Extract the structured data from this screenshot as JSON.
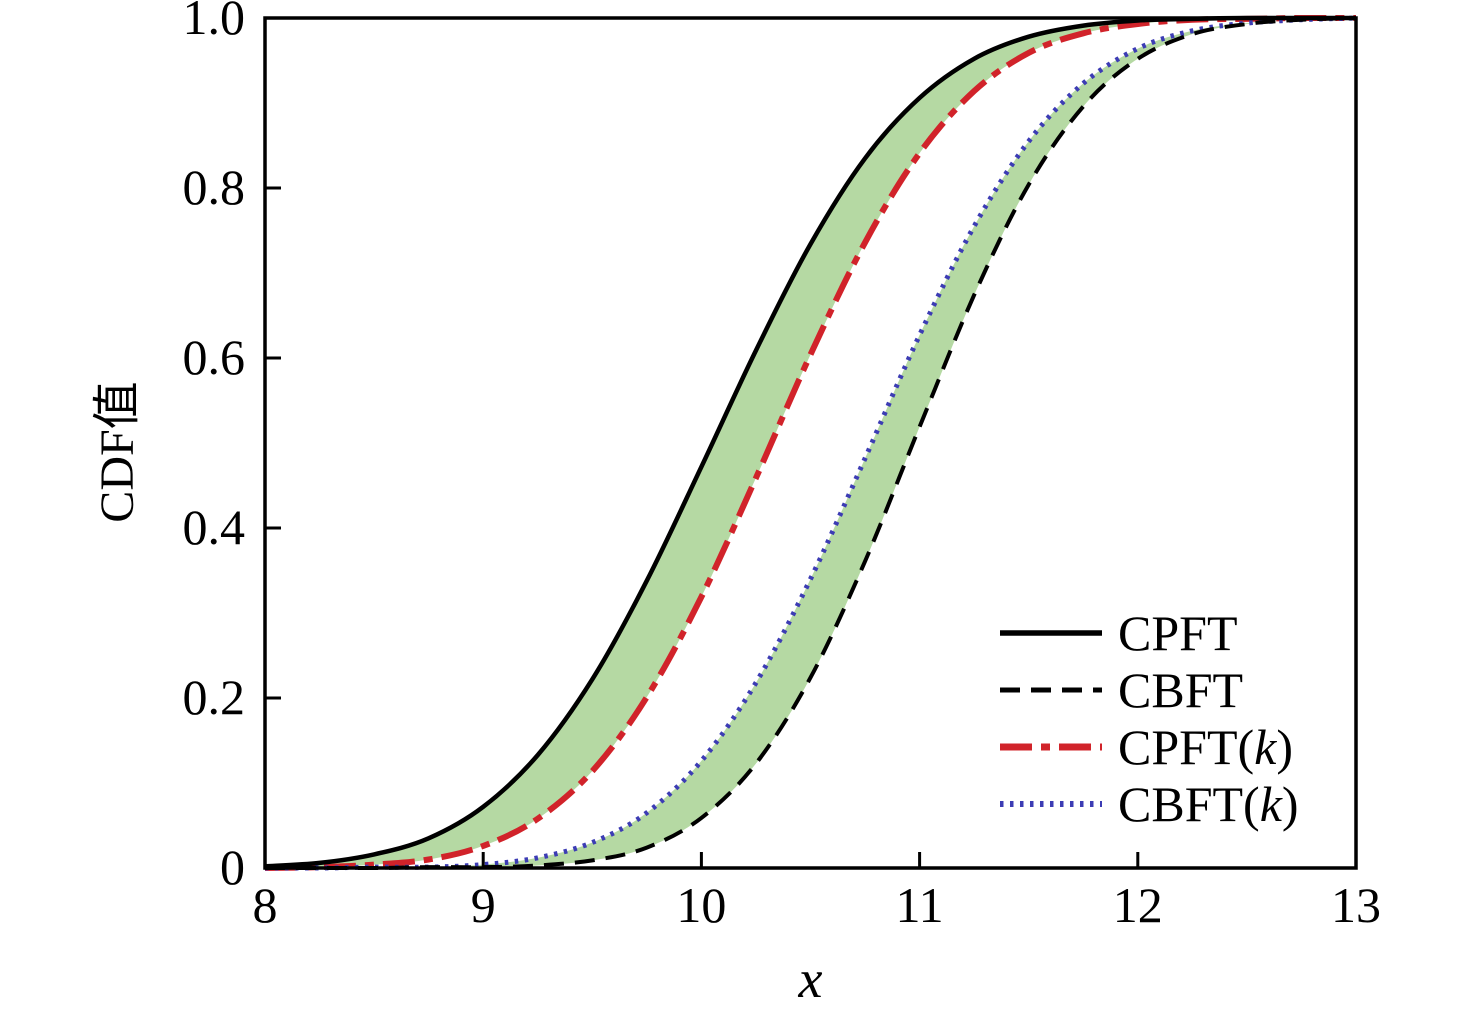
{
  "figure": {
    "background": "#ffffff"
  },
  "chart_data": {
    "type": "line",
    "title": "",
    "xlabel": "x",
    "ylabel": "CDF值",
    "xlim": [
      8,
      13
    ],
    "ylim": [
      0,
      1.0
    ],
    "xticks": [
      8,
      9,
      10,
      11,
      12,
      13
    ],
    "xtick_labels": [
      "8",
      "9",
      "10",
      "11",
      "12",
      "13"
    ],
    "yticks": [
      0,
      0.2,
      0.4,
      0.6,
      0.8,
      1.0
    ],
    "ytick_labels": [
      "0",
      "0.2",
      "0.4",
      "0.6",
      "0.8",
      "1.0"
    ],
    "grid": false,
    "legend_position": "lower right",
    "band_fill_color": "#b5d9a3",
    "x": [
      8,
      8.25,
      8.5,
      8.75,
      9,
      9.25,
      9.5,
      9.75,
      10,
      10.25,
      10.5,
      10.75,
      11,
      11.25,
      11.5,
      11.75,
      12,
      12.25,
      12.5,
      12.75,
      13
    ],
    "series": [
      {
        "name": "CPFT",
        "color": "#000000",
        "line_style": "solid",
        "values": [
          0.002,
          0.006,
          0.016,
          0.035,
          0.072,
          0.133,
          0.222,
          0.338,
          0.472,
          0.609,
          0.734,
          0.835,
          0.906,
          0.952,
          0.978,
          0.991,
          0.997,
          0.999,
          1,
          1,
          1
        ]
      },
      {
        "name": "CBFT",
        "color": "#000000",
        "line_style": "dashed",
        "values": [
          0,
          0,
          0,
          0.001,
          0.001,
          0.003,
          0.009,
          0.024,
          0.059,
          0.123,
          0.224,
          0.361,
          0.519,
          0.674,
          0.804,
          0.896,
          0.952,
          0.981,
          0.993,
          0.998,
          1
        ]
      },
      {
        "name": "CPFT(k)",
        "color": "#d1232a",
        "line_style": "dashdot",
        "values": [
          0,
          0.001,
          0.004,
          0.01,
          0.026,
          0.058,
          0.114,
          0.201,
          0.319,
          0.459,
          0.604,
          0.736,
          0.841,
          0.914,
          0.959,
          0.982,
          0.993,
          0.998,
          0.999,
          1,
          1
        ]
      },
      {
        "name": "CBFT(k)",
        "color": "#3c3cb4",
        "line_style": "dotted",
        "values": [
          0,
          0,
          0.001,
          0.001,
          0.004,
          0.012,
          0.03,
          0.065,
          0.126,
          0.218,
          0.34,
          0.482,
          0.627,
          0.755,
          0.855,
          0.923,
          0.964,
          0.985,
          0.994,
          0.998,
          1
        ]
      }
    ],
    "fills": [
      {
        "between": [
          "CPFT",
          "CPFT(k)"
        ],
        "color": "#b5d9a3"
      },
      {
        "between": [
          "CBFT(k)",
          "CBFT"
        ],
        "color": "#b5d9a3"
      }
    ]
  }
}
